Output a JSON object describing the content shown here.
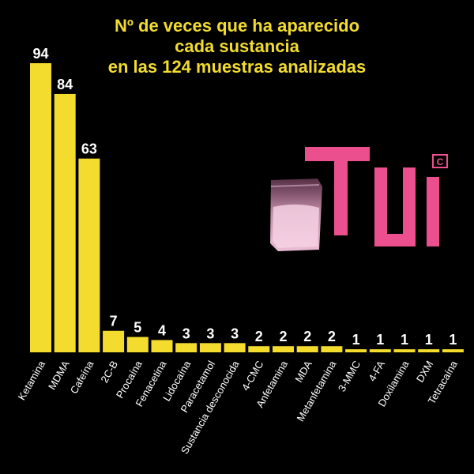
{
  "chart_data": {
    "type": "bar",
    "title": [
      "Nº de veces que ha aparecido",
      "cada sustancia",
      "en las 124 muestras analizadas"
    ],
    "xlabel": "",
    "ylabel": "",
    "ylim": [
      0,
      94
    ],
    "grid": false,
    "categories": [
      "Ketamina",
      "MDMA",
      "Cafeína",
      "2C-B",
      "Procaína",
      "Fenacetina",
      "Lidocaína",
      "Paracetamol",
      "Sustancia desconocida",
      "4-CMC",
      "Anfetamina",
      "MDA",
      "Metanfetamina",
      "3-MMC",
      "4-FA",
      "Doxilamina",
      "DXM",
      "Tetracaína"
    ],
    "values": [
      94,
      84,
      63,
      7,
      5,
      4,
      3,
      3,
      3,
      2,
      2,
      2,
      2,
      1,
      1,
      1,
      1,
      1
    ]
  },
  "logo": {
    "text": "TUSI",
    "badge": "C"
  },
  "colors": {
    "background": "#000000",
    "bar": "#f3dc2e",
    "label": "#ffffff",
    "title": "#f3dc2e",
    "logo": "#ec4f8e"
  }
}
